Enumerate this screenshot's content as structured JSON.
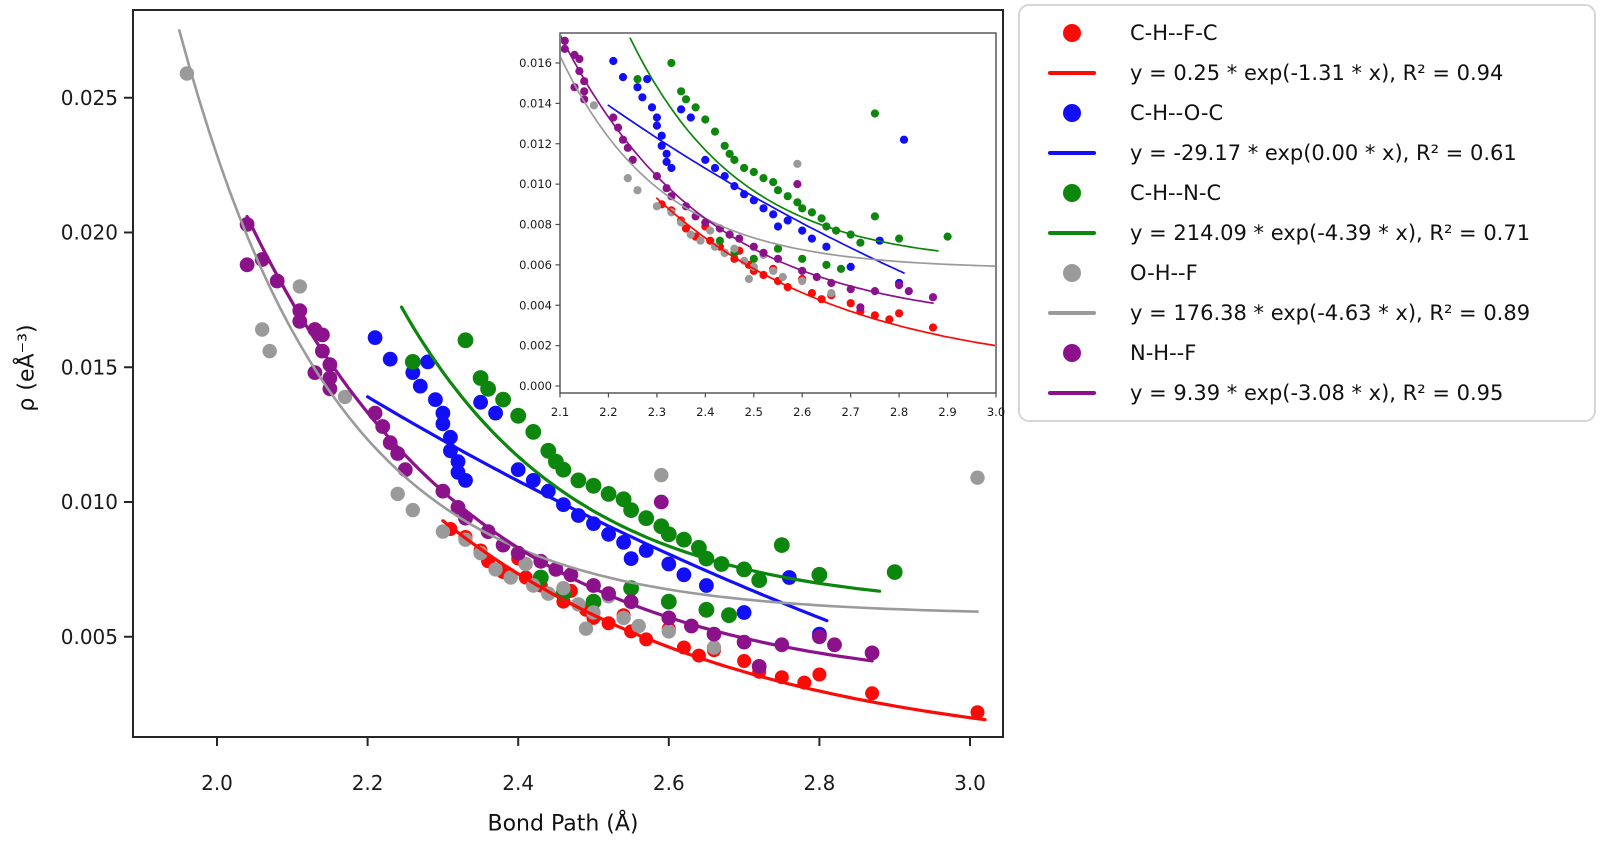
{
  "chart_data": {
    "type": "scatter",
    "title": "",
    "xlabel": "Bond Path (Å)",
    "ylabel": "ρ (eÅ⁻³)",
    "grid": false,
    "legend_position": "outside upper right",
    "main_axes": {
      "xlim": [
        1.888,
        3.044
      ],
      "ylim": [
        0.0012,
        0.0282
      ],
      "xticks": [
        2.0,
        2.2,
        2.4,
        2.6,
        2.8,
        3.0
      ],
      "yticks": [
        0.005,
        0.01,
        0.015,
        0.02,
        0.025
      ]
    },
    "inset_axes": {
      "xlim": [
        2.094,
        3.0
      ],
      "ylim": [
        -0.00035,
        0.01749
      ],
      "xticks": [
        2.1,
        2.2,
        2.3,
        2.4,
        2.5,
        2.6,
        2.7,
        2.8,
        2.9,
        3.0
      ],
      "yticks": [
        0.0,
        0.002,
        0.004,
        0.006,
        0.008,
        0.01,
        0.012,
        0.014,
        0.016
      ]
    },
    "series": [
      {
        "id": "chfc",
        "name": "C-H--F-C",
        "color": "#fb0b07",
        "marker_r_main": 7.0,
        "points": [
          [
            2.31,
            0.009
          ],
          [
            2.33,
            0.0087
          ],
          [
            2.35,
            0.0082
          ],
          [
            2.36,
            0.0078
          ],
          [
            2.38,
            0.0074
          ],
          [
            2.4,
            0.0079
          ],
          [
            2.41,
            0.0072
          ],
          [
            2.43,
            0.0069
          ],
          [
            2.44,
            0.0066
          ],
          [
            2.46,
            0.0063
          ],
          [
            2.47,
            0.0067
          ],
          [
            2.49,
            0.006
          ],
          [
            2.5,
            0.0057
          ],
          [
            2.52,
            0.0055
          ],
          [
            2.54,
            0.0058
          ],
          [
            2.55,
            0.0052
          ],
          [
            2.57,
            0.0049
          ],
          [
            2.6,
            0.0053
          ],
          [
            2.62,
            0.0046
          ],
          [
            2.64,
            0.0043
          ],
          [
            2.66,
            0.0045
          ],
          [
            2.7,
            0.0041
          ],
          [
            2.72,
            0.0037
          ],
          [
            2.75,
            0.0035
          ],
          [
            2.78,
            0.0033
          ],
          [
            2.8,
            0.0036
          ],
          [
            2.87,
            0.0029
          ],
          [
            3.01,
            0.0022
          ]
        ],
        "extra_inset_points": [],
        "fit": {
          "equation": "y = 0.25 * exp(-1.31 * x), R² = 0.94",
          "draw": {
            "A": 2.963,
            "k": 2.53,
            "c": 0.0005,
            "x_start": 2.3,
            "x_end": 3.02
          }
        }
      },
      {
        "id": "choc",
        "name": "C-H--O-C",
        "color": "#120ef8",
        "marker_r_main": 7.4,
        "points": [
          [
            2.21,
            0.0161
          ],
          [
            2.23,
            0.0153
          ],
          [
            2.26,
            0.0148
          ],
          [
            2.27,
            0.0143
          ],
          [
            2.28,
            0.0152
          ],
          [
            2.29,
            0.0138
          ],
          [
            2.3,
            0.0133
          ],
          [
            2.3,
            0.0129
          ],
          [
            2.31,
            0.0124
          ],
          [
            2.31,
            0.0119
          ],
          [
            2.32,
            0.0115
          ],
          [
            2.32,
            0.0111
          ],
          [
            2.33,
            0.0108
          ],
          [
            2.35,
            0.0137
          ],
          [
            2.37,
            0.0133
          ],
          [
            2.4,
            0.0112
          ],
          [
            2.42,
            0.0108
          ],
          [
            2.44,
            0.0104
          ],
          [
            2.46,
            0.0099
          ],
          [
            2.48,
            0.0095
          ],
          [
            2.5,
            0.0092
          ],
          [
            2.52,
            0.0088
          ],
          [
            2.54,
            0.0085
          ],
          [
            2.55,
            0.0079
          ],
          [
            2.57,
            0.0082
          ],
          [
            2.6,
            0.0077
          ],
          [
            2.62,
            0.0073
          ],
          [
            2.65,
            0.0069
          ],
          [
            2.7,
            0.0059
          ],
          [
            2.76,
            0.0072
          ],
          [
            2.8,
            0.0051
          ]
        ],
        "extra_inset_points": [
          [
            2.81,
            0.0122
          ]
        ],
        "fit": {
          "equation": "y = -29.17 * exp(0.00 * x), R² = 0.61",
          "draw": {
            "A": 0.1115,
            "k": 0.7,
            "c": -0.01,
            "x_start": 2.2,
            "x_end": 2.81
          }
        }
      },
      {
        "id": "chnc",
        "name": "C-H--N-C",
        "color": "#0c860c",
        "marker_r_main": 7.9,
        "points": [
          [
            2.26,
            0.0152
          ],
          [
            2.33,
            0.016
          ],
          [
            2.35,
            0.0146
          ],
          [
            2.36,
            0.0142
          ],
          [
            2.38,
            0.0138
          ],
          [
            2.4,
            0.0132
          ],
          [
            2.42,
            0.0126
          ],
          [
            2.44,
            0.0119
          ],
          [
            2.45,
            0.0115
          ],
          [
            2.46,
            0.0112
          ],
          [
            2.48,
            0.0108
          ],
          [
            2.5,
            0.0106
          ],
          [
            2.52,
            0.0103
          ],
          [
            2.54,
            0.0101
          ],
          [
            2.55,
            0.0097
          ],
          [
            2.57,
            0.0094
          ],
          [
            2.59,
            0.0091
          ],
          [
            2.6,
            0.0088
          ],
          [
            2.62,
            0.0086
          ],
          [
            2.64,
            0.0083
          ],
          [
            2.65,
            0.0079
          ],
          [
            2.67,
            0.0077
          ],
          [
            2.7,
            0.0075
          ],
          [
            2.72,
            0.0071
          ],
          [
            2.75,
            0.0084
          ],
          [
            2.8,
            0.0073
          ],
          [
            2.9,
            0.0074
          ],
          [
            2.43,
            0.0072
          ],
          [
            2.46,
            0.0066
          ],
          [
            2.5,
            0.0063
          ],
          [
            2.55,
            0.0068
          ],
          [
            2.6,
            0.0063
          ],
          [
            2.65,
            0.006
          ],
          [
            2.68,
            0.0058
          ]
        ],
        "extra_inset_points": [
          [
            2.75,
            0.0135
          ]
        ],
        "fit": {
          "equation": "y = 214.09 * exp(-4.39 * x), R² = 0.71",
          "draw": {
            "A": 214.09,
            "k": 4.39,
            "c": 0.006,
            "x_start": 2.245,
            "x_end": 2.88
          }
        }
      },
      {
        "id": "ohf",
        "name": "O-H--F",
        "color": "#9a9a9a",
        "marker_r_main": 7.2,
        "points": [
          [
            1.96,
            0.0259
          ],
          [
            2.06,
            0.0164
          ],
          [
            2.07,
            0.0156
          ],
          [
            2.11,
            0.018
          ],
          [
            2.17,
            0.0139
          ],
          [
            2.24,
            0.0103
          ],
          [
            2.26,
            0.0097
          ],
          [
            2.3,
            0.0089
          ],
          [
            2.33,
            0.0086
          ],
          [
            2.35,
            0.0081
          ],
          [
            2.37,
            0.0075
          ],
          [
            2.39,
            0.0072
          ],
          [
            2.41,
            0.0077
          ],
          [
            2.42,
            0.0069
          ],
          [
            2.44,
            0.0066
          ],
          [
            2.46,
            0.0068
          ],
          [
            2.48,
            0.0062
          ],
          [
            2.49,
            0.0053
          ],
          [
            2.5,
            0.0059
          ],
          [
            2.52,
            0.0065
          ],
          [
            2.54,
            0.0057
          ],
          [
            2.56,
            0.0054
          ],
          [
            2.59,
            0.011
          ],
          [
            2.6,
            0.0052
          ],
          [
            2.66,
            0.0046
          ],
          [
            3.01,
            0.0109
          ]
        ],
        "extra_inset_points": [],
        "fit": {
          "equation": "y = 176.38 * exp(-4.63 * x), R² = 0.89",
          "draw": {
            "A": 257.0,
            "k": 4.81,
            "c": 0.0058,
            "x_start": 1.95,
            "x_end": 3.01
          }
        }
      },
      {
        "id": "nhf",
        "name": "N-H--F",
        "color": "#8c128c",
        "marker_r_main": 7.4,
        "points": [
          [
            2.04,
            0.0203
          ],
          [
            2.04,
            0.0188
          ],
          [
            2.06,
            0.019
          ],
          [
            2.08,
            0.0182
          ],
          [
            2.11,
            0.0171
          ],
          [
            2.11,
            0.0167
          ],
          [
            2.13,
            0.0164
          ],
          [
            2.14,
            0.0162
          ],
          [
            2.13,
            0.0148
          ],
          [
            2.14,
            0.0156
          ],
          [
            2.15,
            0.0151
          ],
          [
            2.15,
            0.0146
          ],
          [
            2.15,
            0.0142
          ],
          [
            2.21,
            0.0133
          ],
          [
            2.22,
            0.0128
          ],
          [
            2.23,
            0.0122
          ],
          [
            2.24,
            0.0118
          ],
          [
            2.25,
            0.0112
          ],
          [
            2.3,
            0.0104
          ],
          [
            2.32,
            0.0098
          ],
          [
            2.33,
            0.0094
          ],
          [
            2.36,
            0.0089
          ],
          [
            2.38,
            0.0084
          ],
          [
            2.4,
            0.0081
          ],
          [
            2.43,
            0.0078
          ],
          [
            2.45,
            0.0075
          ],
          [
            2.47,
            0.0073
          ],
          [
            2.5,
            0.0069
          ],
          [
            2.52,
            0.0066
          ],
          [
            2.55,
            0.0063
          ],
          [
            2.59,
            0.01
          ],
          [
            2.6,
            0.0057
          ],
          [
            2.63,
            0.0054
          ],
          [
            2.66,
            0.0051
          ],
          [
            2.7,
            0.0048
          ],
          [
            2.72,
            0.0039
          ],
          [
            2.75,
            0.0047
          ],
          [
            2.8,
            0.005
          ],
          [
            2.82,
            0.0047
          ],
          [
            2.87,
            0.0044
          ]
        ],
        "extra_inset_points": [],
        "fit": {
          "equation": "y = 9.39 * exp(-3.08 * x), R² = 0.95",
          "draw": {
            "A": 15.85,
            "k": 3.335,
            "c": 0.003,
            "x_start": 2.04,
            "x_end": 2.87
          }
        }
      }
    ],
    "legend_entries": [
      {
        "type": "dot",
        "series": "chfc",
        "color": "#fb0b07",
        "label": "C-H--F-C"
      },
      {
        "type": "line",
        "series": "chfc",
        "color": "#fb0b07",
        "label": "y = 0.25 * exp(-1.31 * x), R² = 0.94"
      },
      {
        "type": "dot",
        "series": "choc",
        "color": "#120ef8",
        "label": "C-H--O-C"
      },
      {
        "type": "line",
        "series": "choc",
        "color": "#120ef8",
        "label": "y = -29.17 * exp(0.00 * x), R² = 0.61"
      },
      {
        "type": "dot",
        "series": "chnc",
        "color": "#0c860c",
        "label": "C-H--N-C"
      },
      {
        "type": "line",
        "series": "chnc",
        "color": "#0c860c",
        "label": "y = 214.09 * exp(-4.39 * x), R² = 0.71"
      },
      {
        "type": "dot",
        "series": "ohf",
        "color": "#9a9a9a",
        "label": "O-H--F"
      },
      {
        "type": "line",
        "series": "ohf",
        "color": "#9a9a9a",
        "label": "y = 176.38 * exp(-4.63 * x), R² = 0.89"
      },
      {
        "type": "dot",
        "series": "nhf",
        "color": "#8c128c",
        "label": "N-H--F"
      },
      {
        "type": "line",
        "series": "nhf",
        "color": "#8c128c",
        "label": "y = 9.39 * exp(-3.08 * x), R² = 0.95"
      }
    ]
  }
}
